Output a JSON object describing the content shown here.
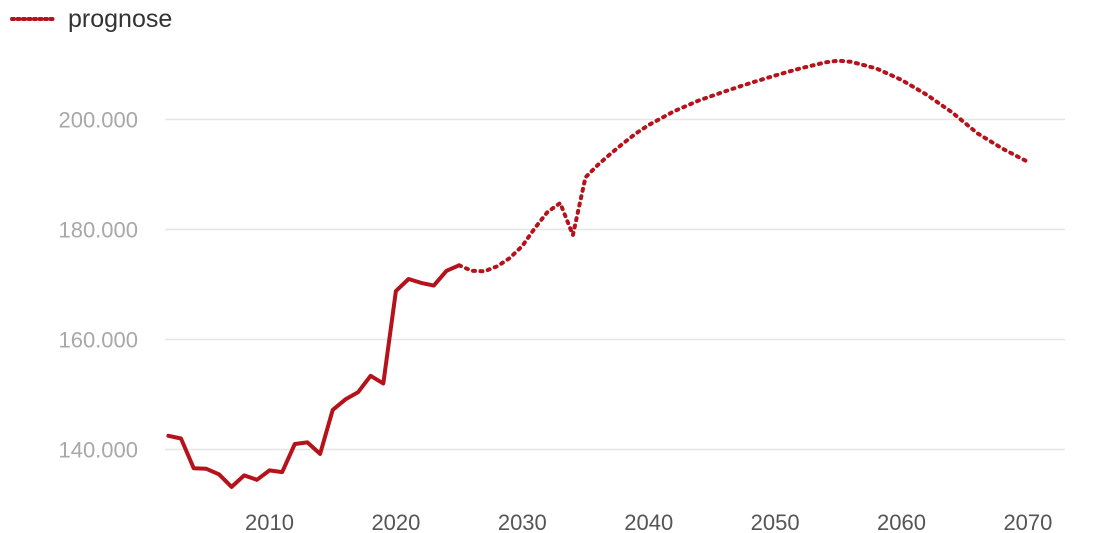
{
  "legend": {
    "label": "prognose"
  },
  "colors": {
    "series": "#b5121b",
    "grid": "#e6e6e6",
    "ytick": "#a8a8a8",
    "xtick": "#555555",
    "legend_text": "#333333"
  },
  "chart_data": {
    "type": "line",
    "title": "",
    "xlabel": "",
    "ylabel": "",
    "xlim": [
      2002,
      2070
    ],
    "ylim": [
      132000,
      211000
    ],
    "grid": "horizontal",
    "legend_position": "top-left",
    "y_ticks": [
      {
        "value": 140000,
        "label": "140.000"
      },
      {
        "value": 160000,
        "label": "160.000"
      },
      {
        "value": 180000,
        "label": "180.000"
      },
      {
        "value": 200000,
        "label": "200.000"
      }
    ],
    "x_ticks": [
      {
        "value": 2010,
        "label": "2010"
      },
      {
        "value": 2020,
        "label": "2020"
      },
      {
        "value": 2030,
        "label": "2030"
      },
      {
        "value": 2040,
        "label": "2040"
      },
      {
        "value": 2050,
        "label": "2050"
      },
      {
        "value": 2060,
        "label": "2060"
      },
      {
        "value": 2070,
        "label": "2070"
      }
    ],
    "series": [
      {
        "style": "solid",
        "x": [
          2002,
          2003,
          2004,
          2005,
          2006,
          2007,
          2008,
          2009,
          2010,
          2011,
          2012,
          2013,
          2014,
          2015,
          2016,
          2017,
          2018,
          2019,
          2020,
          2021,
          2022,
          2023,
          2024,
          2025
        ],
        "values": [
          142500,
          142000,
          136600,
          136500,
          135500,
          133200,
          135300,
          134500,
          136200,
          135900,
          141000,
          141300,
          139200,
          147200,
          149100,
          150400,
          153400,
          152000,
          168800,
          171000,
          170300,
          169800,
          172500,
          173500
        ]
      },
      {
        "name": "prognose",
        "style": "dotted",
        "x": [
          2025,
          2026,
          2027,
          2028,
          2029,
          2030,
          2031,
          2032,
          2033,
          2034,
          2035,
          2036,
          2037,
          2038,
          2039,
          2040,
          2042,
          2044,
          2046,
          2048,
          2050,
          2052,
          2054,
          2055,
          2056,
          2058,
          2060,
          2062,
          2064,
          2066,
          2068,
          2070
        ],
        "values": [
          173500,
          172500,
          172400,
          173300,
          174800,
          177000,
          180300,
          183200,
          184800,
          179000,
          189500,
          191800,
          193800,
          195700,
          197500,
          199000,
          201500,
          203500,
          205100,
          206600,
          208000,
          209300,
          210400,
          210700,
          210500,
          209300,
          207200,
          204500,
          201300,
          197500,
          194700,
          192300
        ]
      }
    ]
  }
}
